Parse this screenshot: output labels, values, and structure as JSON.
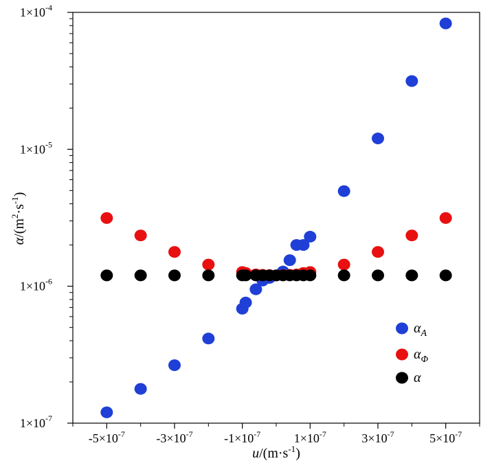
{
  "chart_data": {
    "type": "scatter",
    "title": "",
    "xlabel": {
      "var": "u",
      "unit_prefix": "/(m·s",
      "unit_exp": "-1",
      "unit_suffix": ")"
    },
    "ylabel": {
      "var": "α",
      "unit_prefix": "/(m",
      "unit_exp1": "2",
      "unit_mid": "·s",
      "unit_exp2": "-1",
      "unit_suffix": ")"
    },
    "xlim": [
      -6e-07,
      6e-07
    ],
    "ylim": [
      1e-07,
      0.0001
    ],
    "yscale": "log",
    "x_ticks": [
      {
        "value": -5e-07,
        "base": "-5×10",
        "exp": "-7"
      },
      {
        "value": -3e-07,
        "base": "-3×10",
        "exp": "-7"
      },
      {
        "value": -1e-07,
        "base": "-1×10",
        "exp": "-7"
      },
      {
        "value": 1e-07,
        "base": "1×10",
        "exp": "-7"
      },
      {
        "value": 3e-07,
        "base": "3×10",
        "exp": "-7"
      },
      {
        "value": 5e-07,
        "base": "5×10",
        "exp": "-7"
      }
    ],
    "x_minor_ticks": [
      -6e-07,
      -4e-07,
      -2e-07,
      0,
      2e-07,
      4e-07,
      6e-07
    ],
    "y_ticks": [
      {
        "value": 1e-07,
        "base": "1×10",
        "exp": "-7"
      },
      {
        "value": 1e-06,
        "base": "1×10",
        "exp": "-6"
      },
      {
        "value": 1e-05,
        "base": "1×10",
        "exp": "-5"
      },
      {
        "value": 0.0001,
        "base": "1×10",
        "exp": "-4"
      }
    ],
    "legend_position": "lower-right",
    "series": [
      {
        "name": "α_A",
        "label_main": "α",
        "label_sub": "A",
        "color": "#1f3fd6",
        "x": [
          -5e-07,
          -4e-07,
          -3e-07,
          -2e-07,
          -1e-07,
          -9e-08,
          -6e-08,
          -4e-08,
          -2e-08,
          0,
          2e-08,
          4e-08,
          6e-08,
          8e-08,
          1e-07,
          2e-07,
          3e-07,
          4e-07,
          5e-07
        ],
        "y": [
          1.2e-07,
          1.78e-07,
          2.65e-07,
          4.15e-07,
          6.85e-07,
          7.6e-07,
          9.5e-07,
          1.1e-06,
          1.15e-06,
          1.2e-06,
          1.28e-06,
          1.55e-06,
          2e-06,
          2e-06,
          2.3e-06,
          4.95e-06,
          1.2e-05,
          3.15e-05,
          8.3e-05
        ]
      },
      {
        "name": "α_Φ",
        "label_main": "α",
        "label_sub": "Φ",
        "color": "#e81010",
        "x": [
          -5e-07,
          -4e-07,
          -3e-07,
          -2e-07,
          -1e-07,
          -9e-08,
          -6e-08,
          -4e-08,
          -2e-08,
          0,
          2e-08,
          4e-08,
          6e-08,
          8e-08,
          1e-07,
          2e-07,
          3e-07,
          4e-07,
          5e-07
        ],
        "y": [
          3.15e-06,
          2.35e-06,
          1.78e-06,
          1.44e-06,
          1.27e-06,
          1.25e-06,
          1.22e-06,
          1.21e-06,
          1.205e-06,
          1.2e-06,
          1.205e-06,
          1.21e-06,
          1.22e-06,
          1.25e-06,
          1.27e-06,
          1.44e-06,
          1.78e-06,
          2.35e-06,
          3.15e-06
        ]
      },
      {
        "name": "α",
        "label_main": "α",
        "label_sub": "",
        "color": "#000000",
        "x": [
          -5e-07,
          -4e-07,
          -3e-07,
          -2e-07,
          -1e-07,
          -9e-08,
          -6e-08,
          -4e-08,
          -2e-08,
          0,
          2e-08,
          4e-08,
          6e-08,
          8e-08,
          1e-07,
          2e-07,
          3e-07,
          4e-07,
          5e-07
        ],
        "y": [
          1.2e-06,
          1.2e-06,
          1.2e-06,
          1.2e-06,
          1.2e-06,
          1.2e-06,
          1.2e-06,
          1.2e-06,
          1.2e-06,
          1.2e-06,
          1.2e-06,
          1.2e-06,
          1.2e-06,
          1.2e-06,
          1.2e-06,
          1.2e-06,
          1.2e-06,
          1.2e-06,
          1.2e-06
        ]
      }
    ]
  }
}
